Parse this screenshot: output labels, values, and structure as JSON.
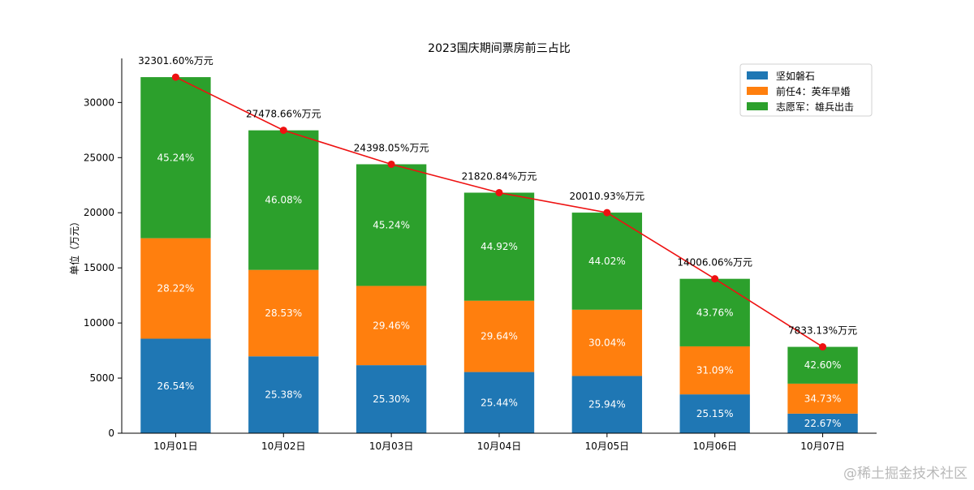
{
  "chart_data": {
    "type": "bar",
    "stacked": true,
    "title": "2023国庆期间票房前三占比",
    "ylabel": "单位（万元）",
    "xlabel": "",
    "categories": [
      "10月01日",
      "10月02日",
      "10月03日",
      "10月04日",
      "10月05日",
      "10月06日",
      "10月07日"
    ],
    "ylim": [
      0,
      34000
    ],
    "yticks": [
      0,
      5000,
      10000,
      15000,
      20000,
      25000,
      30000
    ],
    "legend_position": "top-right",
    "grid": false,
    "series": [
      {
        "name": "坚如磐石",
        "color": "#1f77b4",
        "values": [
          8573,
          6974,
          6173,
          5551,
          5191,
          3523,
          1776
        ],
        "percent_labels": [
          "26.54%",
          "25.38%",
          "25.30%",
          "25.44%",
          "25.94%",
          "25.15%",
          "22.67%"
        ]
      },
      {
        "name": "前任4：英年早婚",
        "color": "#ff7f0e",
        "values": [
          9116,
          7840,
          7188,
          6468,
          6011,
          4355,
          2720
        ],
        "percent_labels": [
          "28.22%",
          "28.53%",
          "29.46%",
          "29.64%",
          "30.04%",
          "31.09%",
          "34.73%"
        ]
      },
      {
        "name": "志愿军：雄兵出击",
        "color": "#2ca02c",
        "values": [
          14613,
          12662,
          11037,
          9802,
          8809,
          6129,
          3337
        ],
        "percent_labels": [
          "45.24%",
          "46.08%",
          "45.24%",
          "44.92%",
          "44.02%",
          "43.76%",
          "42.60%"
        ]
      }
    ],
    "totals": {
      "color": "#ee1111",
      "values": [
        32301.6,
        27478.66,
        24398.05,
        21820.84,
        20010.93,
        14006.06,
        7833.13
      ],
      "labels": [
        "32301.60%万元",
        "27478.66%万元",
        "24398.05%万元",
        "21820.84%万元",
        "20010.93%万元",
        "14006.06%万元",
        "7833.13%万元"
      ]
    }
  },
  "watermark": "@稀土掘金技术社区"
}
